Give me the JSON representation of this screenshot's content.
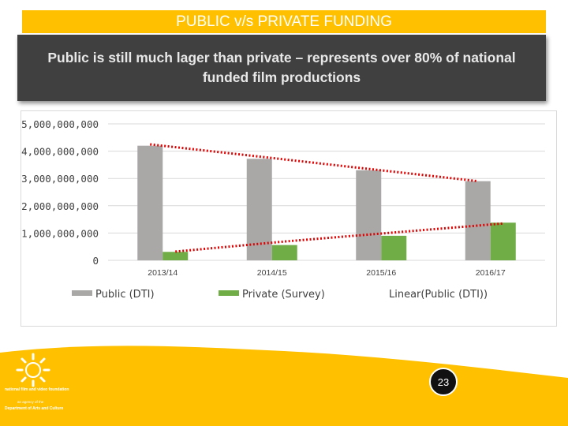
{
  "slide": {
    "title": "PUBLIC v/s PRIVATE FUNDING",
    "subtitle": "Public is still much lager than private – represents over 80% of national funded film productions",
    "page_number": "23",
    "logo": {
      "org_name": "national film and video foundation",
      "agency_line_1": "an agency of the",
      "agency_line_2": "Department of Arts and Culture"
    }
  },
  "colors": {
    "title_bar": "#ffc000",
    "subtitle_bg": "#404040",
    "public": "#aaa7a7",
    "private": "#70ad47",
    "trend": "#e00000",
    "footer": "#ffc000"
  },
  "chart_data": {
    "type": "bar",
    "title": "",
    "xlabel": "",
    "ylabel": "",
    "categories": [
      "2013/14",
      "2014/15",
      "2015/16",
      "2016/17"
    ],
    "series": [
      {
        "name": "Public (DTI)",
        "values": [
          4200000000,
          3720000000,
          3300000000,
          2900000000
        ]
      },
      {
        "name": "Private (Survey)",
        "values": [
          310000000,
          560000000,
          900000000,
          1380000000
        ]
      }
    ],
    "trendlines": [
      {
        "name": "Linear(Public (DTI))",
        "series": "Public (DTI)",
        "values": [
          4250000000,
          3800000000,
          3350000000,
          2900000000
        ]
      },
      {
        "series": "Private (Survey)",
        "values": [
          320000000,
          690000000,
          1020000000,
          1350000000
        ]
      }
    ],
    "ylim": [
      0,
      5000000000
    ],
    "yticks": [
      0,
      1000000000,
      2000000000,
      3000000000,
      4000000000,
      5000000000
    ],
    "ytick_labels": [
      "0",
      "1,000,000,000",
      "2,000,000,000",
      "3,000,000,000",
      "4,000,000,000",
      "5,000,000,000"
    ],
    "legend": [
      "Public (DTI)",
      "Private (Survey)",
      "Linear(Public (DTI))"
    ],
    "legend_position": "bottom",
    "grid": true
  }
}
